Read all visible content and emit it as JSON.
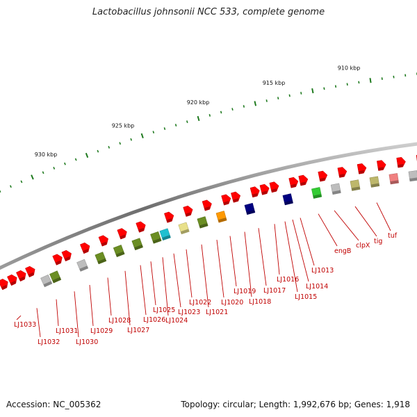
{
  "title": "Lactobacillus johnsonii NCC 533, complete genome",
  "footer": {
    "accession": "Accession: NC_005362",
    "summary": "Topology: circular; Length: 1,992,676 bp; Genes: 1,918"
  },
  "colors": {
    "backbone": "#7a7a7a",
    "gene_default": "#ff0000",
    "label": "#c00000",
    "tick": "#1f7a1f",
    "categories": {
      "red": "#ff0000",
      "gray": "#bdbdbd",
      "olive": "#6b8e23",
      "lightolive": "#bdb76b",
      "cyan": "#20c0d0",
      "khaki": "#e8e08a",
      "orange": "#ff9900",
      "navy": "#000080",
      "green": "#33cc33",
      "pink": "#f08080"
    }
  },
  "map": {
    "scale_labels": [
      "910 kbp",
      "915 kbp",
      "920 kbp",
      "925 kbp",
      "930 kbp"
    ],
    "genes": [
      {
        "cat": "red"
      },
      {
        "cat": "red"
      },
      {
        "cat": "red"
      },
      {
        "cat": "red"
      },
      {
        "cat": "gray"
      },
      {
        "cat": "olive"
      },
      {
        "cat": "red"
      },
      {
        "cat": "red"
      },
      {
        "cat": "gray"
      },
      {
        "cat": "red"
      },
      {
        "cat": "olive"
      },
      {
        "cat": "red"
      },
      {
        "cat": "olive"
      },
      {
        "cat": "red"
      },
      {
        "cat": "olive"
      },
      {
        "cat": "red"
      },
      {
        "cat": "olive"
      },
      {
        "cat": "cyan"
      },
      {
        "cat": "red"
      },
      {
        "cat": "khaki"
      },
      {
        "cat": "red"
      },
      {
        "cat": "olive"
      },
      {
        "cat": "red"
      },
      {
        "cat": "orange"
      },
      {
        "cat": "red"
      },
      {
        "cat": "red"
      },
      {
        "cat": "navy"
      },
      {
        "cat": "red"
      },
      {
        "cat": "red"
      },
      {
        "cat": "red"
      },
      {
        "cat": "navy"
      },
      {
        "cat": "red"
      },
      {
        "cat": "red"
      },
      {
        "cat": "green"
      },
      {
        "cat": "red"
      },
      {
        "cat": "gray"
      },
      {
        "cat": "red"
      },
      {
        "cat": "lightolive"
      },
      {
        "cat": "red"
      },
      {
        "cat": "lightolive"
      },
      {
        "cat": "red"
      },
      {
        "cat": "pink"
      },
      {
        "cat": "red"
      },
      {
        "cat": "gray"
      },
      {
        "cat": "red"
      }
    ],
    "gene_labels": [
      "LJ1033",
      "LJ1032",
      "LJ1031",
      "LJ1030",
      "LJ1029",
      "LJ1028",
      "LJ1027",
      "LJ1026",
      "LJ1025",
      "LJ1024",
      "LJ1023",
      "LJ1022",
      "LJ1021",
      "LJ1020",
      "LJ1019",
      "LJ1018",
      "LJ1017",
      "LJ1016",
      "LJ1015",
      "LJ1014",
      "LJ1013",
      "engB",
      "clpX",
      "tig",
      "tuf"
    ]
  }
}
